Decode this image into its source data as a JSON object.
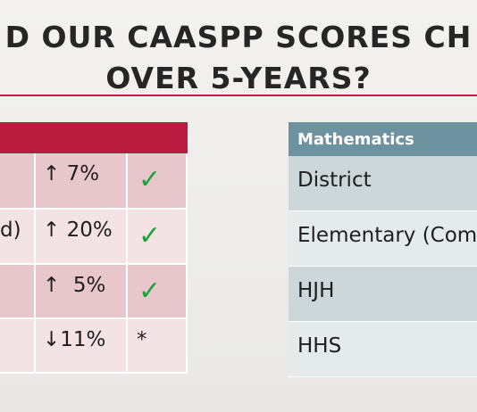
{
  "title": {
    "lines": [
      "D OUR CAASPP SCORES CH",
      "OVER 5-YEARS?"
    ]
  },
  "left_table": {
    "rows": [
      {
        "change": "↑ 7%",
        "status": "✓"
      },
      {
        "label": "d)",
        "change": "↑ 20%",
        "status": "✓"
      },
      {
        "change": "↑  5%",
        "status": "✓"
      },
      {
        "change": "↓11%",
        "status": "*"
      }
    ]
  },
  "right_table": {
    "header": "Mathematics",
    "rows": [
      "District",
      "Elementary (Com",
      "HJH",
      "HHS"
    ]
  }
}
